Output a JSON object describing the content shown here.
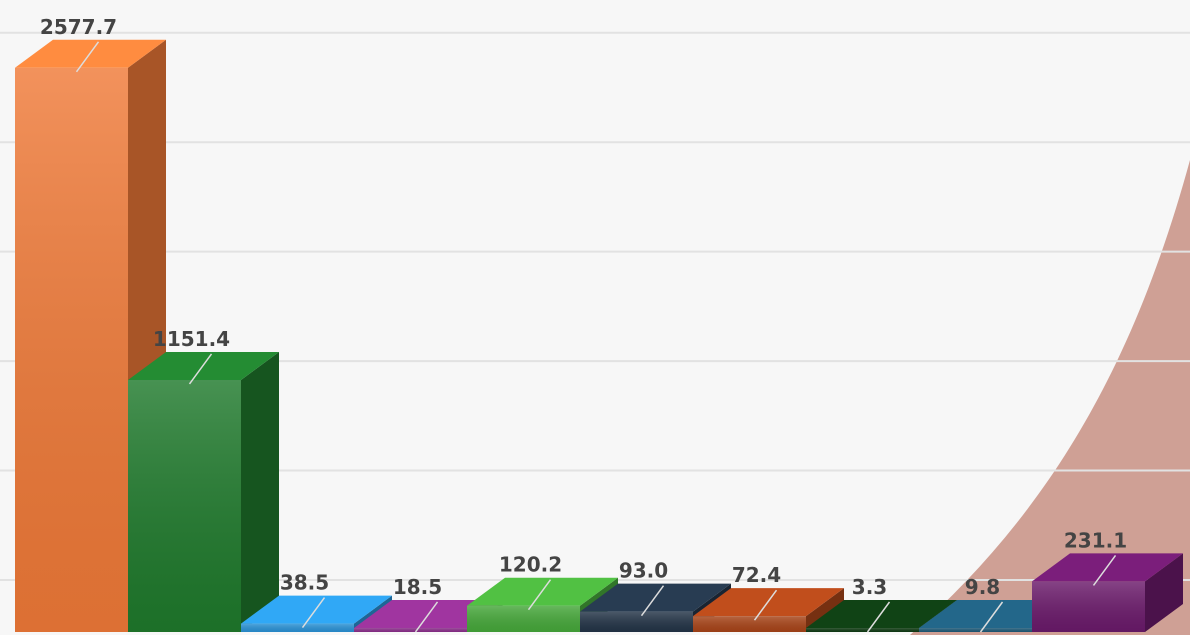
{
  "chart_data": {
    "type": "bar3d",
    "values": [
      2577.7,
      1151.4,
      38.5,
      18.5,
      120.2,
      93.0,
      72.4,
      3.3,
      9.8,
      231.1
    ],
    "value_labels": [
      "2577.7",
      "1151.4",
      "38.5",
      "18.5",
      "120.2",
      "93.0",
      "72.4",
      "3.3",
      "9.8",
      "231.1"
    ],
    "colors": [
      "#f07a38",
      "#1f7a2c",
      "#2a92d6",
      "#8b2e8b",
      "#46a83a",
      "#233447",
      "#a84418",
      "#0e3a12",
      "#1e5a78",
      "#6b1a6b"
    ],
    "ylim": [
      0,
      2700
    ],
    "yticks": [
      0,
      500,
      1000,
      1500,
      2000,
      2500
    ],
    "grid": true
  }
}
